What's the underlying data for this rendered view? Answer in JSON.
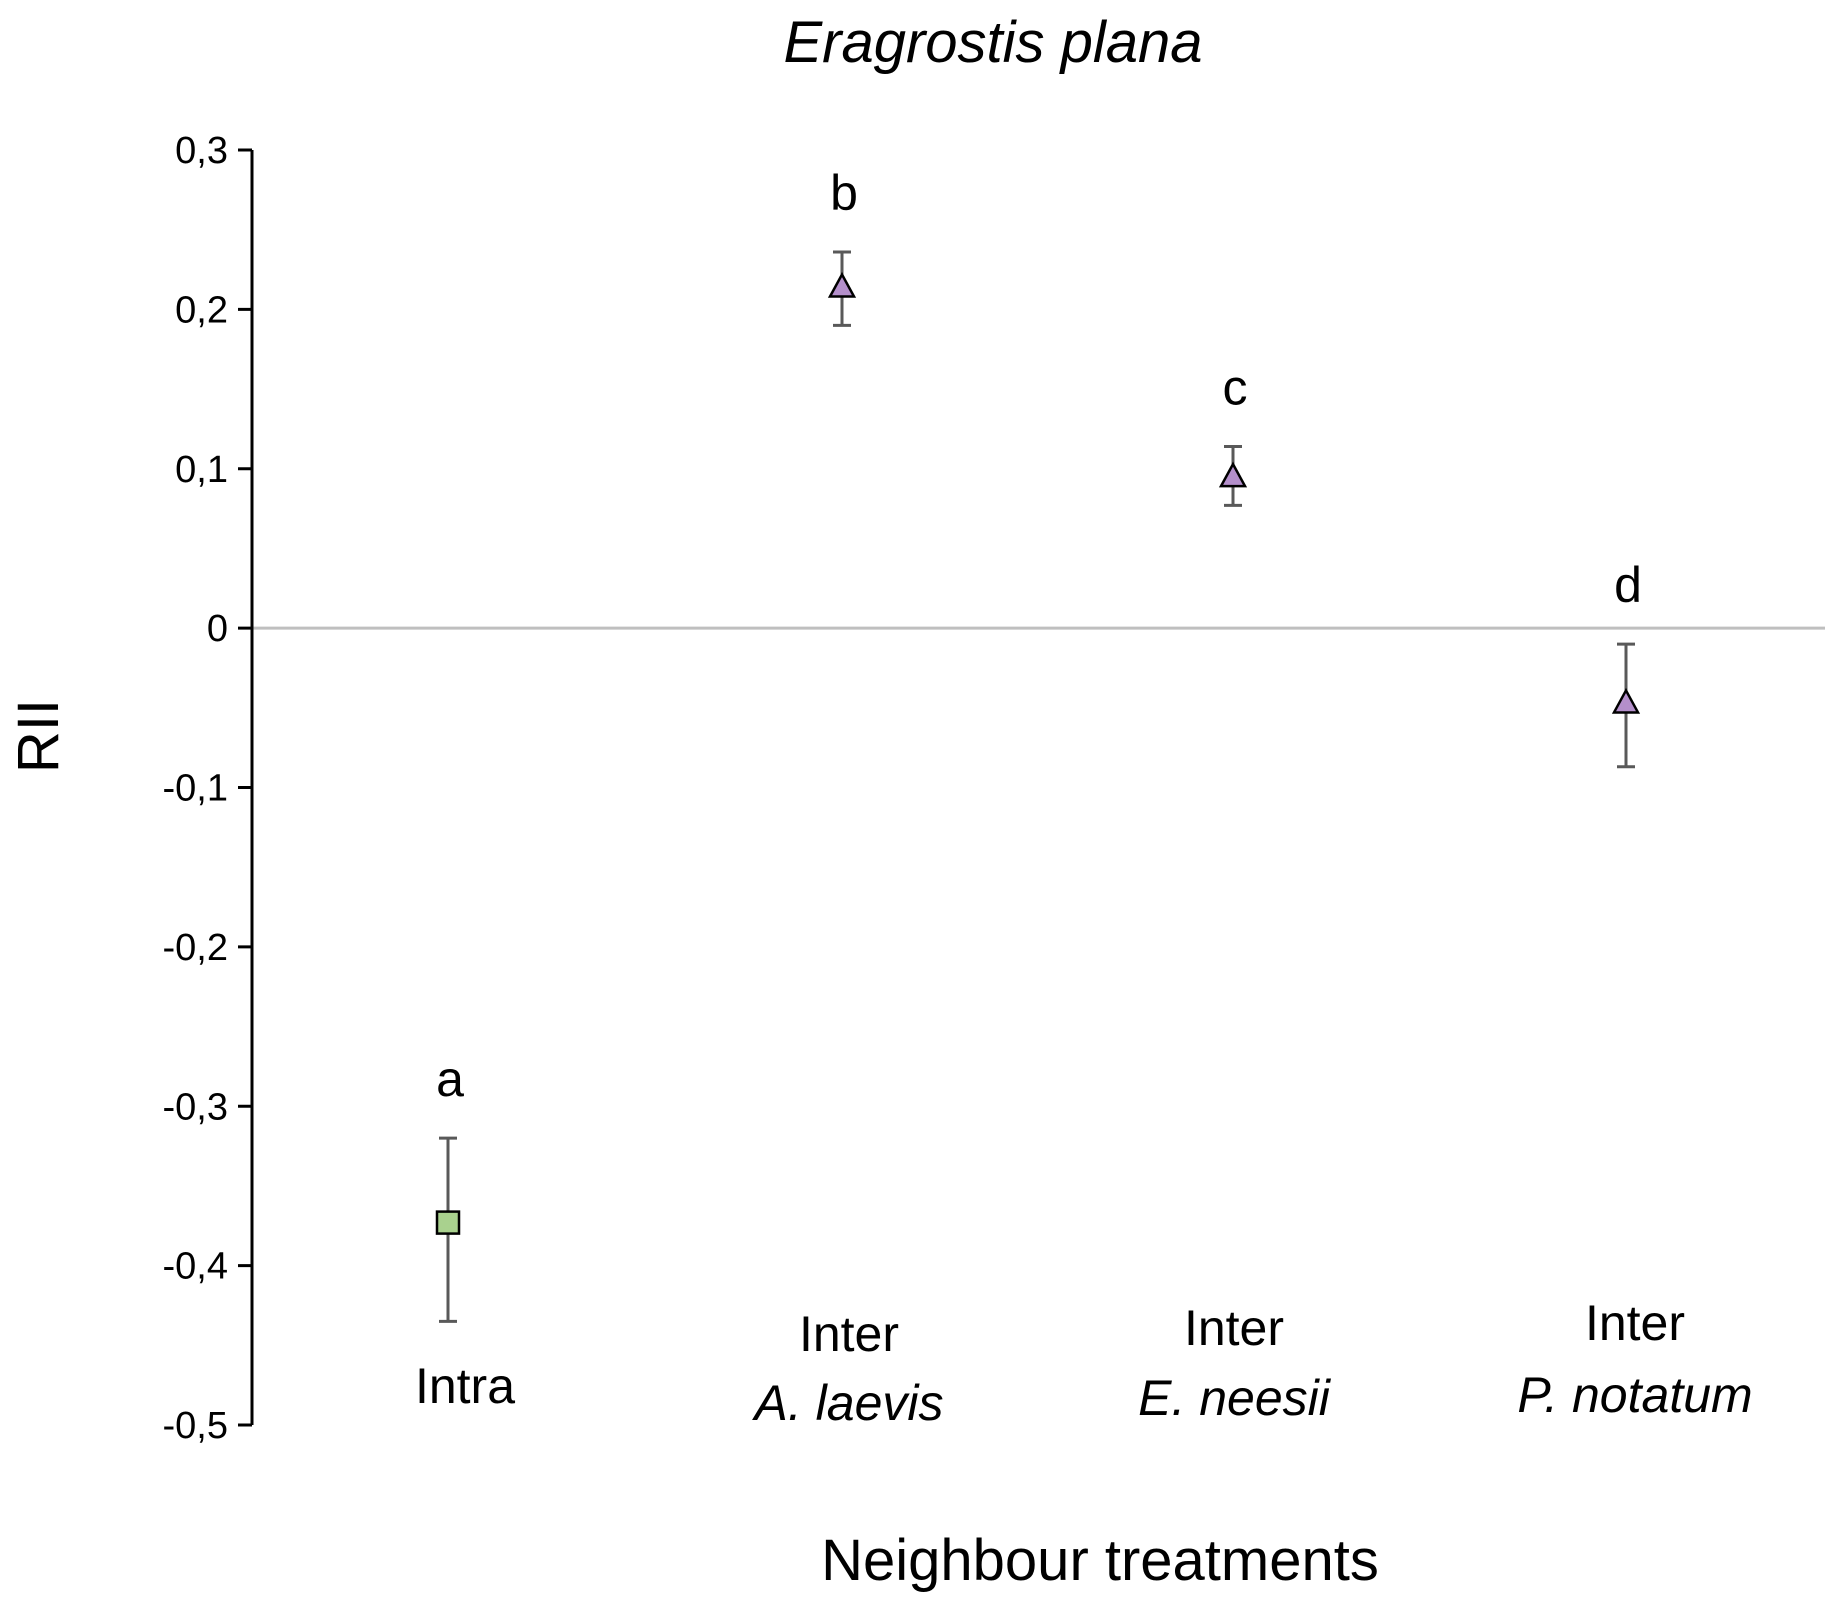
{
  "chart_data": {
    "type": "scatter",
    "title": "Eragrostis plana",
    "xlabel": "Neighbour treatments",
    "ylabel": "RII",
    "ylim": [
      -0.5,
      0.3
    ],
    "yticks": [
      "0,3",
      "0,2",
      "0,1",
      "0",
      "-0,1",
      "-0,2",
      "-0,3",
      "-0,4",
      "-0,5"
    ],
    "ytick_values": [
      0.3,
      0.2,
      0.1,
      0,
      -0.1,
      -0.2,
      -0.3,
      -0.4,
      -0.5
    ],
    "zero_line": true,
    "grid": false,
    "categories": [
      {
        "line1": "",
        "line2": "Intra",
        "line2_italic": false
      },
      {
        "line1": "Inter",
        "line2": "A. laevis",
        "line2_italic": true
      },
      {
        "line1": "Inter",
        "line2": "E. neesii",
        "line2_italic": true
      },
      {
        "line1": "Inter",
        "line2": "P. notatum",
        "line2_italic": true
      }
    ],
    "points": [
      {
        "value": -0.373,
        "err_upper": -0.32,
        "err_lower": -0.435,
        "marker": "square",
        "color": "#a9d18e",
        "significance": "a"
      },
      {
        "value": 0.215,
        "err_upper": 0.236,
        "err_lower": 0.19,
        "marker": "triangle",
        "color": "#b48fcb",
        "significance": "b"
      },
      {
        "value": 0.096,
        "err_upper": 0.114,
        "err_lower": 0.077,
        "marker": "triangle",
        "color": "#b48fcb",
        "significance": "c"
      },
      {
        "value": -0.046,
        "err_upper": -0.01,
        "err_lower": -0.087,
        "marker": "triangle",
        "color": "#b48fcb",
        "significance": "d"
      }
    ],
    "colors": {
      "axis": "#000000",
      "zero_line": "#bfbfbf",
      "error_bar": "#595959",
      "marker_edge": "#000000"
    }
  }
}
